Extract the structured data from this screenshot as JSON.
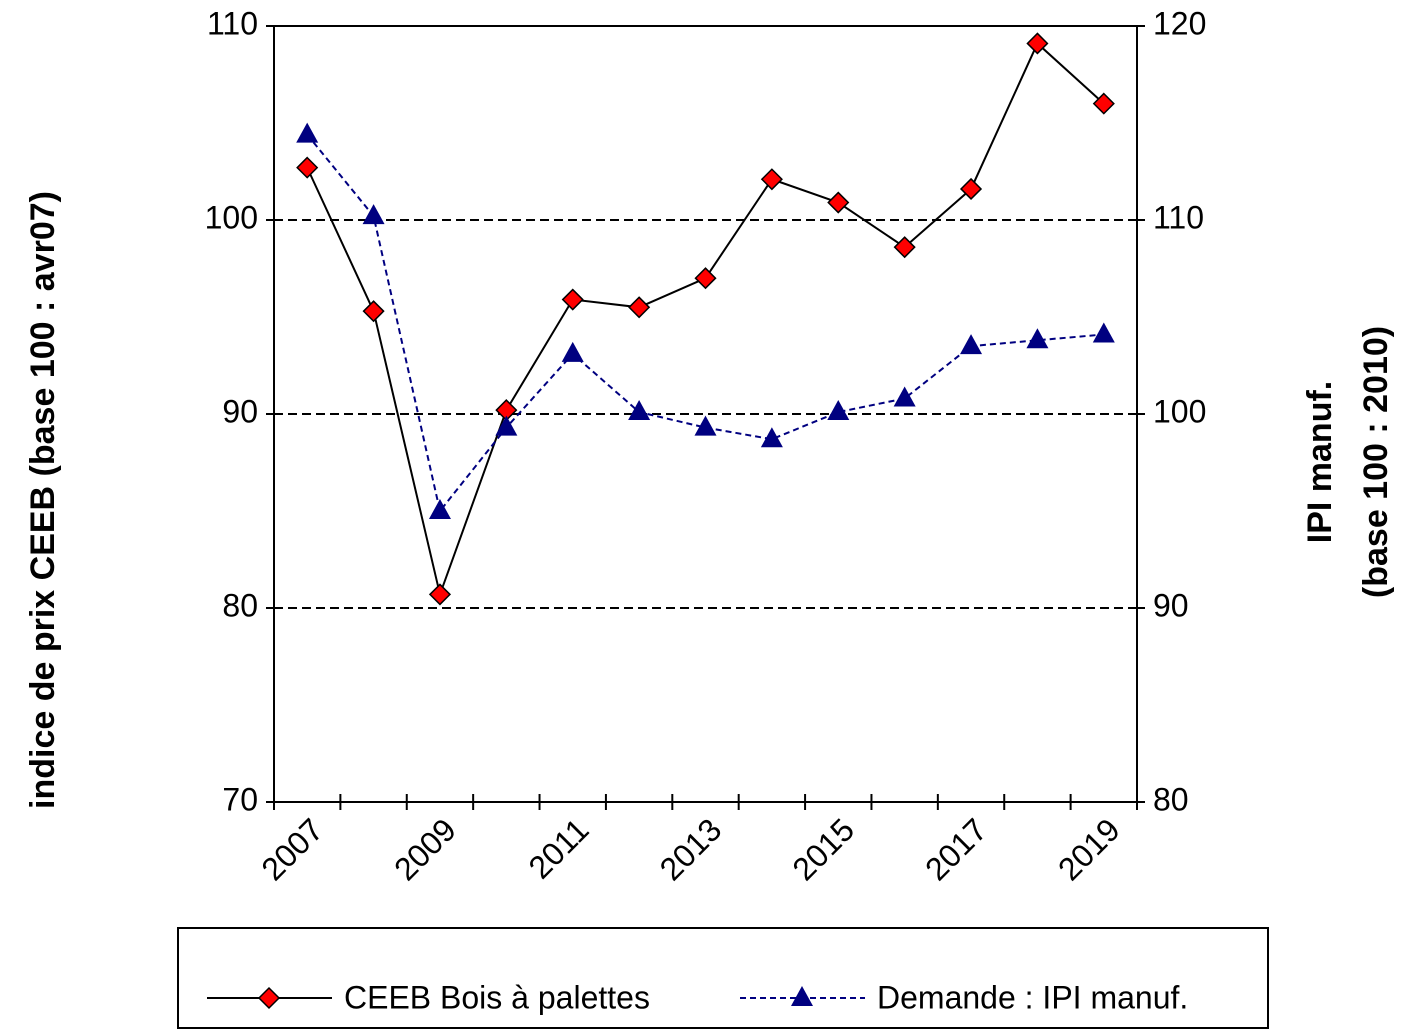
{
  "chart_data": {
    "type": "line",
    "categories": [
      "2007",
      null,
      "2009",
      null,
      "2011",
      null,
      "2013",
      null,
      "2015",
      null,
      "2017",
      null,
      "2019"
    ],
    "ylabel": "indice de prix CEEB  (base 100 : avr07)",
    "y2label": [
      "IPI manuf.",
      "(base 100 : 2010)"
    ],
    "ylim": [
      70,
      110
    ],
    "yticks": [
      70,
      80,
      90,
      100,
      110
    ],
    "y2lim": [
      80,
      120
    ],
    "y2ticks": [
      80,
      90,
      100,
      110,
      120
    ],
    "grid": true,
    "legend": "bottom",
    "series": [
      {
        "name": "CEEB Bois à  palettes",
        "color": "#000000",
        "marker": "diamond",
        "marker_color": "#ff0000",
        "values": [
          102.7,
          95.3,
          80.7,
          90.2,
          95.9,
          95.5,
          97.0,
          102.1,
          100.9,
          98.6,
          101.6,
          109.1,
          106.0
        ]
      },
      {
        "name": "Demande : IPI manuf.",
        "color": "#000080",
        "marker": "triangle",
        "axis": "y2",
        "dashed": true,
        "values": [
          114.4,
          110.2,
          95.0,
          99.3,
          103.1,
          100.1,
          99.3,
          98.7,
          100.1,
          100.8,
          103.5,
          103.8,
          104.1
        ]
      }
    ]
  }
}
